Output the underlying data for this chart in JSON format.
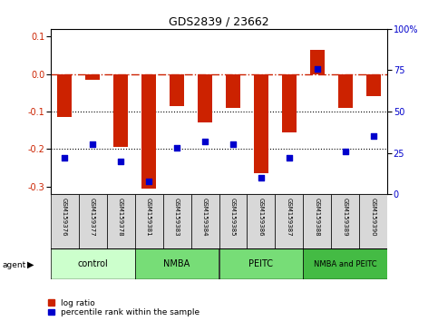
{
  "title": "GDS2839 / 23662",
  "samples": [
    "GSM159376",
    "GSM159377",
    "GSM159378",
    "GSM159381",
    "GSM159383",
    "GSM159384",
    "GSM159385",
    "GSM159386",
    "GSM159387",
    "GSM159388",
    "GSM159389",
    "GSM159390"
  ],
  "log_ratio": [
    -0.115,
    -0.015,
    -0.195,
    -0.305,
    -0.085,
    -0.13,
    -0.09,
    -0.265,
    -0.155,
    0.065,
    -0.09,
    -0.06
  ],
  "percentile_rank": [
    22,
    30,
    20,
    8,
    28,
    32,
    30,
    10,
    22,
    76,
    26,
    35
  ],
  "groups": [
    {
      "label": "control",
      "start": 0,
      "end": 3,
      "color": "#ccffcc"
    },
    {
      "label": "NMBA",
      "start": 3,
      "end": 6,
      "color": "#77dd77"
    },
    {
      "label": "PEITC",
      "start": 6,
      "end": 9,
      "color": "#77dd77"
    },
    {
      "label": "NMBA and PEITC",
      "start": 9,
      "end": 12,
      "color": "#44bb44"
    }
  ],
  "bar_color": "#cc2200",
  "dot_color": "#0000cc",
  "dashed_line_color": "#cc2200",
  "ylim_left": [
    -0.32,
    0.12
  ],
  "ylim_right": [
    0,
    100
  ],
  "yticks_left": [
    -0.3,
    -0.2,
    -0.1,
    0,
    0.1
  ],
  "yticks_right": [
    0,
    25,
    50,
    75,
    100
  ],
  "background_color": "#ffffff"
}
